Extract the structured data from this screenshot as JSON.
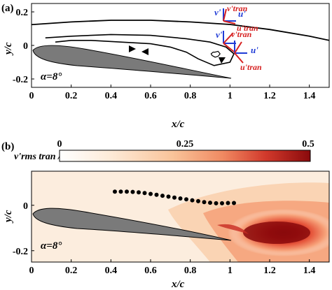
{
  "chart_data": [
    {
      "type": "line",
      "panel_label": "(a)",
      "xlabel": "x/c",
      "ylabel": "y/c",
      "xlim": [
        0,
        1.5
      ],
      "ylim": [
        -0.25,
        0.25
      ],
      "xticks": [
        "0",
        "0.2",
        "0.4",
        "0.6",
        "0.8",
        "1",
        "1.2",
        "1.4"
      ],
      "yticks": [
        "0.2",
        "0",
        "-0.2"
      ],
      "annotation": "α=8°",
      "outer_streamline": {
        "x": [
          -0.05,
          0.2,
          0.4,
          0.6,
          0.8,
          1.0,
          1.2,
          1.4,
          1.5
        ],
        "y": [
          0.12,
          0.14,
          0.15,
          0.15,
          0.14,
          0.125,
          0.095,
          0.055,
          0.03
        ]
      },
      "separation_streamline": {
        "x": [
          0.07,
          0.2,
          0.4,
          0.6,
          0.78,
          0.9,
          0.98,
          1.02,
          1.0,
          0.92,
          0.84,
          0.78,
          0.7,
          0.6,
          0.45,
          0.3,
          0.2,
          0.12
        ],
        "y": [
          0.045,
          0.055,
          0.065,
          0.06,
          0.04,
          0.02,
          -0.01,
          -0.05,
          -0.1,
          -0.12,
          -0.08,
          -0.04,
          -0.01,
          0.01,
          0.02,
          0.03,
          0.03,
          0.02
        ]
      },
      "vortex_core": {
        "x": [
          0.925,
          0.94,
          0.95,
          0.94,
          0.925,
          0.91,
          0.905,
          0.915
        ],
        "y": [
          -0.04,
          -0.035,
          -0.05,
          -0.065,
          -0.07,
          -0.06,
          -0.05,
          -0.04
        ]
      },
      "coordinate_frames": {
        "lab_components": [
          "v'",
          "u'"
        ],
        "rotated_components": [
          "v'tran",
          "u'tran"
        ],
        "lab_color": "#1f3bd6",
        "rotated_color": "#d62020"
      }
    },
    {
      "type": "heatmap",
      "panel_label": "(b)",
      "colorbar_label": "v'rms tran / U∞",
      "colorbar_range": [
        0,
        0.5
      ],
      "colorbar_ticks": [
        "0",
        "0.25",
        "0.5"
      ],
      "colormap": [
        "#fdf3e8",
        "#fbd9b8",
        "#f7a27a",
        "#e5553b",
        "#b41014",
        "#8a0a0c"
      ],
      "xlabel": "x/c",
      "ylabel": "y/c",
      "xlim": [
        0,
        1.5
      ],
      "ylim": [
        -0.25,
        0.15
      ],
      "xticks": [
        "0",
        "0.2",
        "0.4",
        "0.6",
        "0.8",
        "1",
        "1.2",
        "1.4"
      ],
      "yticks": [
        "0",
        "-0.2"
      ],
      "annotation": "α=8°",
      "peak_region": {
        "x": 1.2,
        "y": -0.09,
        "value": 0.5
      },
      "probe_points": {
        "x": [
          0.42,
          0.45,
          0.48,
          0.51,
          0.54,
          0.57,
          0.6,
          0.63,
          0.66,
          0.69,
          0.72,
          0.75,
          0.78,
          0.81,
          0.84,
          0.87,
          0.9,
          0.93,
          0.96,
          0.99,
          1.02
        ],
        "y": [
          0.06,
          0.06,
          0.06,
          0.059,
          0.057,
          0.054,
          0.05,
          0.046,
          0.042,
          0.038,
          0.034,
          0.03,
          0.026,
          0.022,
          0.018,
          0.014,
          0.011,
          0.009,
          0.009,
          0.01,
          0.01
        ]
      }
    }
  ]
}
